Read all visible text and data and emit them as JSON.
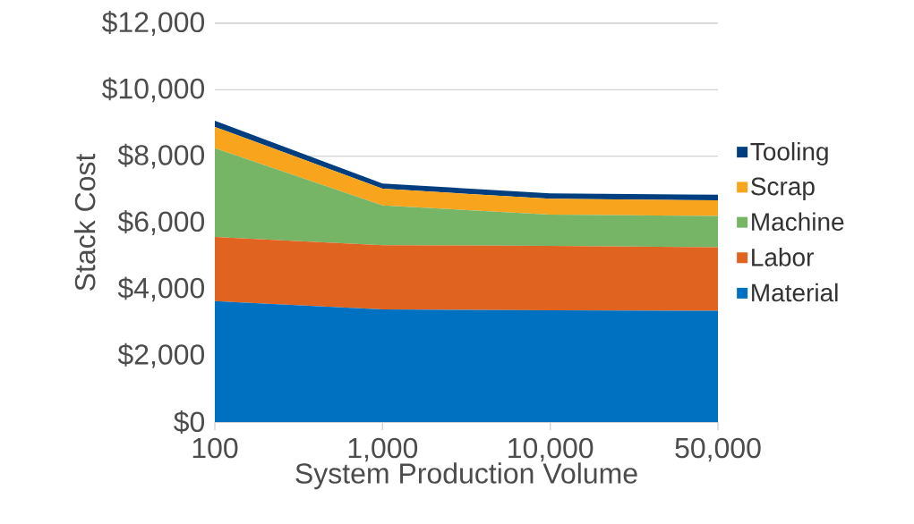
{
  "chart_data": {
    "type": "area",
    "stacked": true,
    "xlabel": "System Production Volume",
    "ylabel": "Stack Cost",
    "categories": [
      "100",
      "1,000",
      "10,000",
      "50,000"
    ],
    "ylim": [
      0,
      12000
    ],
    "yticks": [
      {
        "value": 0,
        "label": "$0"
      },
      {
        "value": 2000,
        "label": "$2,000"
      },
      {
        "value": 4000,
        "label": "$4,000"
      },
      {
        "value": 6000,
        "label": "$6,000"
      },
      {
        "value": 8000,
        "label": "$8,000"
      },
      {
        "value": 10000,
        "label": "$10,000"
      },
      {
        "value": 12000,
        "label": "$12,000"
      }
    ],
    "grid": "y",
    "legend": "right",
    "series": [
      {
        "name": "Material",
        "color": "#0070c0",
        "values": [
          3640,
          3390,
          3360,
          3350
        ]
      },
      {
        "name": "Labor",
        "color": "#e06320",
        "values": [
          1930,
          1930,
          1940,
          1910
        ]
      },
      {
        "name": "Machine",
        "color": "#77b566",
        "values": [
          2670,
          1200,
          940,
          940
        ]
      },
      {
        "name": "Scrap",
        "color": "#f8a51d",
        "values": [
          640,
          500,
          480,
          470
        ]
      },
      {
        "name": "Tooling",
        "color": "#003f7f",
        "values": [
          190,
          160,
          160,
          170
        ]
      }
    ]
  }
}
